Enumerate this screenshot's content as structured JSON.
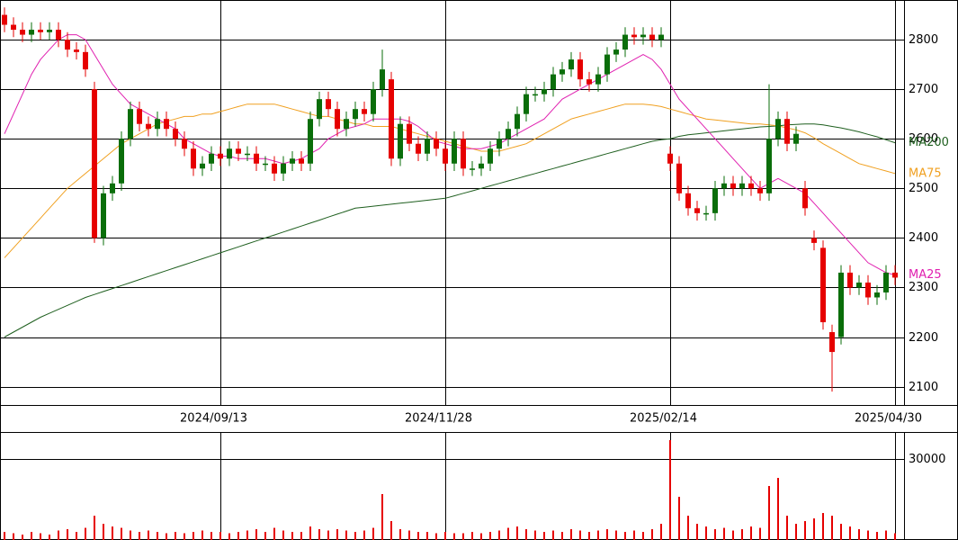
{
  "chart_data": [
    {
      "type": "candlestick",
      "categories": [
        null,
        null,
        null,
        null,
        null,
        null,
        null,
        null,
        null,
        null,
        null,
        null,
        null,
        null,
        null,
        null,
        null,
        null,
        null,
        null,
        null,
        null,
        null,
        null,
        "2024/09/13",
        null,
        null,
        null,
        null,
        null,
        null,
        null,
        null,
        null,
        null,
        null,
        null,
        null,
        null,
        null,
        null,
        null,
        null,
        null,
        null,
        null,
        null,
        null,
        null,
        "2024/11/28",
        null,
        null,
        null,
        null,
        null,
        null,
        null,
        null,
        null,
        null,
        null,
        null,
        null,
        null,
        null,
        null,
        null,
        null,
        null,
        null,
        null,
        null,
        null,
        null,
        "2025/02/14",
        null,
        null,
        null,
        null,
        null,
        null,
        null,
        null,
        null,
        null,
        null,
        null,
        null,
        null,
        null,
        null,
        null,
        null,
        null,
        null,
        null,
        null,
        null,
        null,
        "2025/04/30"
      ],
      "open": [
        2850,
        2830,
        2820,
        2810,
        2820,
        2815,
        2820,
        2800,
        2780,
        2775,
        2700,
        2400,
        2490,
        2510,
        2600,
        2660,
        2630,
        2620,
        2640,
        2620,
        2600,
        2580,
        2540,
        2550,
        2570,
        2560,
        2580,
        2570,
        2570,
        2550,
        2550,
        2530,
        2550,
        2560,
        2550,
        2640,
        2680,
        2660,
        2620,
        2640,
        2660,
        2650,
        2700,
        2720,
        2560,
        2630,
        2590,
        2570,
        2600,
        2580,
        2550,
        2600,
        2540,
        2540,
        2550,
        2580,
        2600,
        2620,
        2650,
        2690,
        2690,
        2700,
        2730,
        2740,
        2760,
        2720,
        2710,
        2730,
        2770,
        2780,
        2810,
        2805,
        2810,
        2800,
        2570,
        2550,
        2490,
        2460,
        2450,
        2450,
        2500,
        2510,
        2500,
        2510,
        2500,
        2490,
        2600,
        2640,
        2590,
        2500,
        2400,
        2380,
        2210,
        2200,
        2330,
        2300,
        2310,
        2280,
        2290,
        2330
      ],
      "high": [
        2865,
        2845,
        2835,
        2835,
        2835,
        2835,
        2835,
        2815,
        2795,
        2790,
        2715,
        2505,
        2525,
        2615,
        2675,
        2675,
        2645,
        2655,
        2655,
        2635,
        2615,
        2595,
        2565,
        2585,
        2585,
        2595,
        2595,
        2585,
        2585,
        2565,
        2565,
        2565,
        2575,
        2575,
        2655,
        2695,
        2695,
        2675,
        2655,
        2675,
        2675,
        2715,
        2780,
        2735,
        2645,
        2645,
        2605,
        2615,
        2615,
        2595,
        2615,
        2615,
        2555,
        2565,
        2595,
        2615,
        2635,
        2665,
        2705,
        2705,
        2715,
        2745,
        2755,
        2775,
        2775,
        2735,
        2745,
        2785,
        2795,
        2825,
        2825,
        2825,
        2825,
        2825,
        2585,
        2565,
        2505,
        2475,
        2465,
        2515,
        2525,
        2525,
        2525,
        2525,
        2515,
        2710,
        2655,
        2655,
        2625,
        2515,
        2415,
        2395,
        2225,
        2345,
        2345,
        2325,
        2325,
        2305,
        2345,
        2345
      ],
      "low": [
        2815,
        2805,
        2795,
        2795,
        2800,
        2800,
        2785,
        2765,
        2760,
        2725,
        2390,
        2385,
        2475,
        2495,
        2585,
        2615,
        2605,
        2605,
        2605,
        2585,
        2565,
        2525,
        2525,
        2535,
        2545,
        2545,
        2555,
        2555,
        2535,
        2535,
        2515,
        2515,
        2535,
        2535,
        2535,
        2625,
        2645,
        2605,
        2605,
        2625,
        2635,
        2635,
        2685,
        2545,
        2545,
        2575,
        2555,
        2555,
        2565,
        2535,
        2535,
        2525,
        2525,
        2525,
        2535,
        2565,
        2585,
        2605,
        2635,
        2675,
        2675,
        2685,
        2715,
        2725,
        2705,
        2695,
        2695,
        2715,
        2755,
        2765,
        2790,
        2790,
        2785,
        2785,
        2535,
        2475,
        2445,
        2435,
        2435,
        2435,
        2485,
        2485,
        2485,
        2485,
        2475,
        2475,
        2585,
        2575,
        2575,
        2445,
        2375,
        2215,
        2090,
        2185,
        2285,
        2285,
        2265,
        2265,
        2275,
        2305
      ],
      "close": [
        2830,
        2820,
        2810,
        2820,
        2815,
        2820,
        2800,
        2780,
        2775,
        2740,
        2400,
        2490,
        2510,
        2600,
        2660,
        2630,
        2620,
        2640,
        2620,
        2600,
        2580,
        2540,
        2550,
        2570,
        2560,
        2580,
        2570,
        2570,
        2550,
        2550,
        2530,
        2550,
        2560,
        2550,
        2640,
        2680,
        2660,
        2620,
        2640,
        2660,
        2650,
        2700,
        2740,
        2560,
        2630,
        2590,
        2570,
        2600,
        2580,
        2550,
        2600,
        2540,
        2540,
        2550,
        2580,
        2600,
        2620,
        2650,
        2690,
        2690,
        2700,
        2730,
        2740,
        2760,
        2720,
        2710,
        2730,
        2770,
        2780,
        2810,
        2805,
        2810,
        2800,
        2810,
        2550,
        2490,
        2460,
        2450,
        2450,
        2500,
        2510,
        2500,
        2510,
        2500,
        2490,
        2600,
        2640,
        2590,
        2610,
        2460,
        2390,
        2230,
        2170,
        2330,
        2300,
        2310,
        2280,
        2290,
        2330,
        2320
      ],
      "up_color": "#0a6e0a",
      "down_color": "#e60000",
      "series": [
        {
          "name": "MA200",
          "color": "#1f5f1f",
          "values": [
            2200,
            2210,
            2220,
            2230,
            2240,
            2248,
            2256,
            2264,
            2272,
            2280,
            2286,
            2292,
            2298,
            2304,
            2310,
            2316,
            2322,
            2328,
            2334,
            2340,
            2346,
            2352,
            2358,
            2364,
            2370,
            2376,
            2382,
            2388,
            2394,
            2400,
            2406,
            2412,
            2418,
            2424,
            2430,
            2436,
            2442,
            2448,
            2454,
            2460,
            2462,
            2464,
            2466,
            2468,
            2470,
            2472,
            2474,
            2476,
            2478,
            2480,
            2485,
            2490,
            2495,
            2500,
            2505,
            2510,
            2515,
            2520,
            2525,
            2530,
            2535,
            2540,
            2545,
            2550,
            2555,
            2560,
            2565,
            2570,
            2575,
            2580,
            2585,
            2590,
            2595,
            2598,
            2600,
            2605,
            2608,
            2610,
            2612,
            2614,
            2616,
            2618,
            2620,
            2622,
            2624,
            2625,
            2626,
            2628,
            2629,
            2630,
            2630,
            2628,
            2625,
            2622,
            2618,
            2614,
            2609,
            2604,
            2598,
            2592
          ]
        },
        {
          "name": "MA75",
          "color": "#f0a020",
          "values": [
            2360,
            2380,
            2400,
            2420,
            2440,
            2460,
            2480,
            2500,
            2515,
            2530,
            2545,
            2560,
            2575,
            2590,
            2600,
            2610,
            2620,
            2630,
            2635,
            2640,
            2645,
            2645,
            2650,
            2650,
            2655,
            2660,
            2665,
            2670,
            2670,
            2670,
            2670,
            2665,
            2660,
            2655,
            2650,
            2645,
            2645,
            2640,
            2635,
            2630,
            2630,
            2625,
            2625,
            2625,
            2620,
            2615,
            2610,
            2605,
            2600,
            2595,
            2590,
            2585,
            2580,
            2575,
            2575,
            2575,
            2580,
            2585,
            2590,
            2600,
            2610,
            2620,
            2630,
            2640,
            2645,
            2650,
            2655,
            2660,
            2665,
            2670,
            2670,
            2670,
            2668,
            2665,
            2660,
            2655,
            2650,
            2645,
            2640,
            2638,
            2636,
            2634,
            2632,
            2630,
            2630,
            2628,
            2626,
            2622,
            2618,
            2612,
            2602,
            2590,
            2580,
            2570,
            2560,
            2550,
            2545,
            2540,
            2535,
            2530
          ]
        },
        {
          "name": "MA25",
          "color": "#e020b0",
          "values": [
            2610,
            2650,
            2690,
            2730,
            2760,
            2780,
            2800,
            2810,
            2810,
            2800,
            2770,
            2740,
            2710,
            2690,
            2670,
            2660,
            2650,
            2640,
            2630,
            2620,
            2600,
            2590,
            2580,
            2570,
            2565,
            2565,
            2560,
            2560,
            2560,
            2560,
            2555,
            2550,
            2555,
            2560,
            2570,
            2580,
            2600,
            2610,
            2620,
            2625,
            2630,
            2640,
            2640,
            2640,
            2640,
            2635,
            2625,
            2610,
            2595,
            2590,
            2585,
            2580,
            2580,
            2580,
            2585,
            2590,
            2600,
            2610,
            2620,
            2630,
            2640,
            2660,
            2680,
            2690,
            2700,
            2710,
            2720,
            2730,
            2740,
            2750,
            2760,
            2770,
            2760,
            2740,
            2710,
            2680,
            2660,
            2640,
            2620,
            2600,
            2580,
            2560,
            2540,
            2520,
            2500,
            2510,
            2520,
            2510,
            2500,
            2490,
            2470,
            2450,
            2430,
            2410,
            2390,
            2370,
            2350,
            2340,
            2330,
            2325
          ]
        }
      ],
      "ylim": [
        2063,
        2880
      ],
      "yticks": [
        2100,
        2200,
        2300,
        2400,
        2500,
        2600,
        2700,
        2800
      ],
      "grid": true
    },
    {
      "type": "bar",
      "values": [
        3000,
        2500,
        2000,
        3000,
        2500,
        2000,
        3500,
        4000,
        3000,
        4500,
        9000,
        6000,
        5000,
        4500,
        3500,
        3000,
        3500,
        3000,
        2500,
        3000,
        2500,
        3000,
        3500,
        3000,
        3000,
        2500,
        3000,
        3500,
        4000,
        3000,
        4500,
        3500,
        3000,
        3000,
        5000,
        4000,
        3500,
        4000,
        3500,
        3000,
        3500,
        4500,
        17000,
        7000,
        4000,
        3500,
        3000,
        3000,
        2500,
        3000,
        2500,
        2500,
        3000,
        2500,
        3000,
        3500,
        4500,
        5000,
        4000,
        3500,
        3000,
        3500,
        3000,
        4000,
        3500,
        3000,
        3500,
        4000,
        3500,
        3000,
        3500,
        3000,
        4000,
        6000,
        37000,
        16000,
        9000,
        6000,
        5000,
        4000,
        4500,
        3500,
        4000,
        5000,
        4500,
        20000,
        23000,
        9000,
        6000,
        7000,
        8000,
        10000,
        9000,
        6000,
        5000,
        4000,
        3500,
        3000,
        3500,
        2500
      ],
      "color": "#e60000",
      "ylim": [
        0,
        40000
      ],
      "yticks": [
        30000
      ],
      "grid": true
    }
  ]
}
